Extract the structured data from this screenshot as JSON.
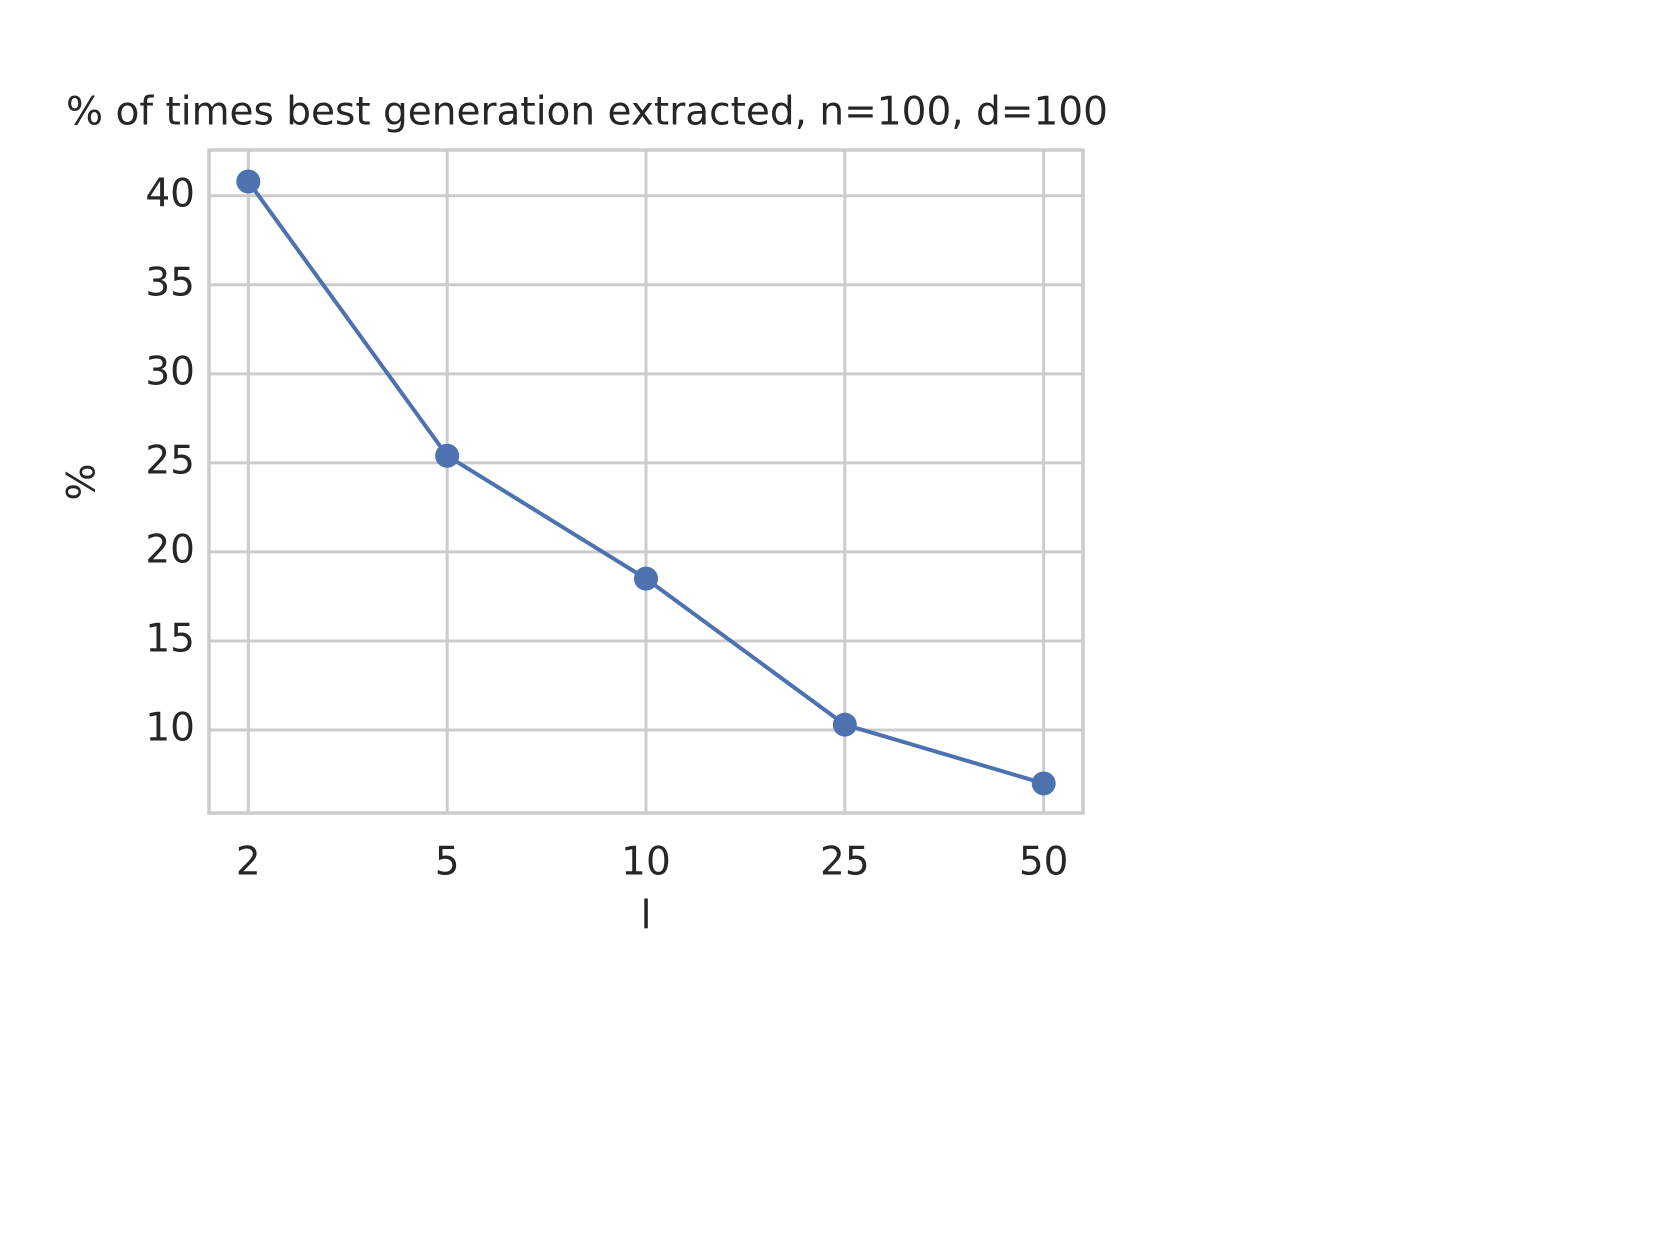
{
  "chart_data": {
    "type": "line",
    "title": "% of times best generation extracted, n=100, d=100",
    "x_label": "l",
    "y_label": "%",
    "categories": [
      "2",
      "5",
      "10",
      "25",
      "50"
    ],
    "series": [
      {
        "name": "%",
        "color": "#4c72b0",
        "values": [
          40.8,
          25.4,
          18.5,
          10.3,
          7.0
        ]
      }
    ],
    "ylim": [
      5.34,
      42.57
    ],
    "yticks": [
      10,
      15,
      20,
      25,
      30,
      35,
      40
    ],
    "grid": true
  }
}
